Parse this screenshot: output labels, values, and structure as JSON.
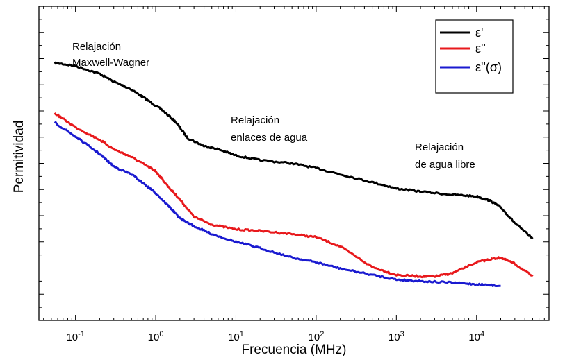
{
  "chart_data": {
    "type": "line",
    "title": "",
    "xlabel": "Frecuencia (MHz)",
    "ylabel": "Permitividad",
    "xscale": "log",
    "xlim": [
      0.035,
      80000
    ],
    "ylim": [
      0,
      1
    ],
    "y_tick_labels_shown": false,
    "legend_position": "top-right",
    "x_ticks": [
      {
        "value": 0.1,
        "base": "10",
        "exp": "-1"
      },
      {
        "value": 1,
        "base": "10",
        "exp": "0"
      },
      {
        "value": 10,
        "base": "10",
        "exp": "1"
      },
      {
        "value": 100,
        "base": "10",
        "exp": "2"
      },
      {
        "value": 1000,
        "base": "10",
        "exp": "3"
      },
      {
        "value": 10000,
        "base": "10",
        "exp": "4"
      }
    ],
    "annotations": [
      {
        "lines": [
          "Relajación",
          "Maxwell-Wagner"
        ]
      },
      {
        "lines": [
          "Relajación",
          "enlaces de agua"
        ]
      },
      {
        "lines": [
          "Relajación",
          "de agua libre"
        ]
      }
    ],
    "series": [
      {
        "name": "ε'",
        "color": "#000000",
        "x": [
          0.055,
          0.1,
          0.2,
          0.3,
          0.5,
          0.8,
          1.2,
          1.8,
          2.5,
          4,
          6,
          10,
          20,
          50,
          100,
          200,
          500,
          1000,
          2000,
          5000,
          10000,
          15000,
          20000,
          30000,
          50000
        ],
        "y": [
          0.82,
          0.81,
          0.785,
          0.76,
          0.735,
          0.7,
          0.67,
          0.63,
          0.58,
          0.555,
          0.545,
          0.525,
          0.51,
          0.5,
          0.485,
          0.465,
          0.44,
          0.42,
          0.41,
          0.4,
          0.395,
          0.38,
          0.36,
          0.31,
          0.26
        ]
      },
      {
        "name": "ε''",
        "color": "#e8191c",
        "x": [
          0.055,
          0.1,
          0.2,
          0.3,
          0.5,
          0.8,
          1.0,
          1.5,
          2.0,
          3.0,
          5.0,
          10,
          20,
          50,
          100,
          200,
          500,
          1000,
          2000,
          3000,
          5000,
          10000,
          15000,
          20000,
          30000,
          50000
        ],
        "y": [
          0.66,
          0.615,
          0.575,
          0.545,
          0.52,
          0.49,
          0.475,
          0.42,
          0.385,
          0.33,
          0.305,
          0.29,
          0.285,
          0.275,
          0.265,
          0.235,
          0.17,
          0.145,
          0.14,
          0.14,
          0.15,
          0.185,
          0.195,
          0.2,
          0.18,
          0.14
        ]
      },
      {
        "name": "ε''(σ)",
        "color": "#1a1ad0",
        "x": [
          0.055,
          0.1,
          0.2,
          0.3,
          0.5,
          0.8,
          1.0,
          1.5,
          2.0,
          3.0,
          5.0,
          10,
          20,
          50,
          100,
          200,
          500,
          1000,
          2000,
          5000,
          10000,
          20000
        ],
        "y": [
          0.63,
          0.585,
          0.53,
          0.49,
          0.465,
          0.425,
          0.405,
          0.36,
          0.325,
          0.3,
          0.275,
          0.25,
          0.23,
          0.2,
          0.185,
          0.165,
          0.145,
          0.13,
          0.125,
          0.12,
          0.115,
          0.11
        ]
      }
    ]
  }
}
